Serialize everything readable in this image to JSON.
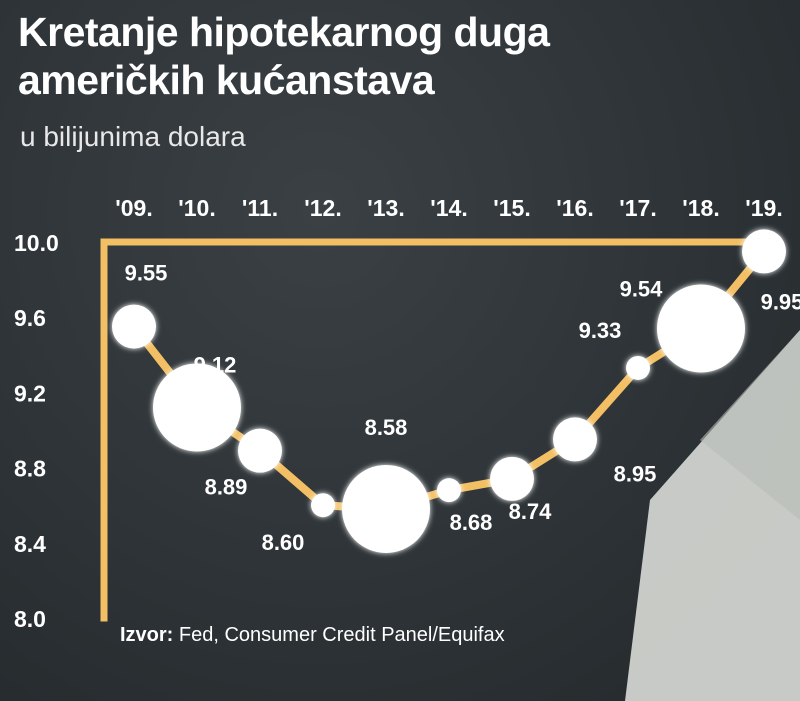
{
  "title_line1": "Kretanje hipotekarnog duga",
  "title_line2": "američkih kućanstava",
  "subtitle": "u bilijunima dolara",
  "source_label": "Izvor:",
  "source_text": " Fed, Consumer Credit Panel/Equifax",
  "colors": {
    "line": "#f2bf64",
    "markers": "#ffffff",
    "text": "#ffffff",
    "background": "#2f3538"
  },
  "chart_data": {
    "type": "line",
    "title": "Kretanje hipotekarnog duga američkih kućanstava",
    "subtitle": "u bilijunima dolara",
    "categories": [
      "'09.",
      "'10.",
      "'11.",
      "'12.",
      "'13.",
      "'14.",
      "'15.",
      "'16.",
      "'17.",
      "'18.",
      "'19."
    ],
    "x_axis_position": "top",
    "y_ticks": [
      "10.0",
      "9.6",
      "9.2",
      "8.8",
      "8.4",
      "8.0"
    ],
    "ylim": [
      8.0,
      10.0
    ],
    "grid": false,
    "series": [
      {
        "values": [
          9.55,
          9.12,
          8.89,
          8.6,
          8.58,
          8.68,
          8.74,
          8.95,
          9.33,
          9.54,
          9.95
        ],
        "labels": [
          "9.55",
          "9.12",
          "8.89",
          "8.60",
          "8.58",
          "8.68",
          "8.74",
          "8.95",
          "9.33",
          "9.54",
          "9.95"
        ]
      }
    ]
  }
}
